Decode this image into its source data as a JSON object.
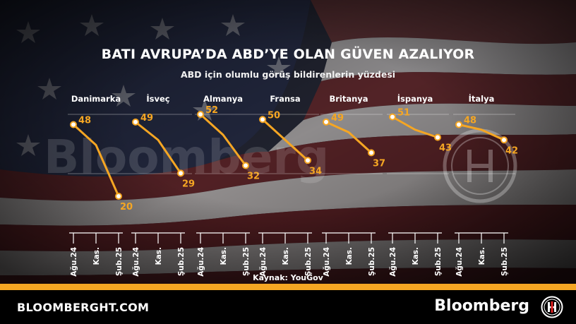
{
  "header": {
    "title": "BATI AVRUPA’DA ABD’YE OLAN GÜVEN AZALIYOR",
    "subtitle": "ABD için olumlu görüş bildirenlerin yüzdesi"
  },
  "watermark": {
    "text": "Bloomberg"
  },
  "source": "Kaynak: YouGov",
  "footer": {
    "site": "BLOOMBERGHT.COM",
    "brand": "Bloomberg",
    "logo_icon": "bloomberght-logo-icon"
  },
  "colors": {
    "line": "#f5a623",
    "point_fill": "#ffffff",
    "label": "#f5a623",
    "accent_bar": "#f5a623",
    "footer_bg": "#000000"
  },
  "chart_data": {
    "type": "line",
    "x_labels": [
      "Ağu.24",
      "Kas.",
      "Şub.25"
    ],
    "ylim": [
      20,
      52
    ],
    "panels": [
      {
        "name": "Danimarka",
        "values": [
          48,
          40,
          20
        ]
      },
      {
        "name": "İsveç",
        "values": [
          49,
          42,
          29
        ]
      },
      {
        "name": "Almanya",
        "values": [
          52,
          44,
          32
        ]
      },
      {
        "name": "Fransa",
        "values": [
          50,
          42,
          34
        ]
      },
      {
        "name": "Britanya",
        "values": [
          49,
          45,
          37
        ]
      },
      {
        "name": "İspanya",
        "values": [
          51,
          46,
          43
        ]
      },
      {
        "name": "İtalya",
        "values": [
          48,
          46,
          42
        ]
      }
    ]
  }
}
